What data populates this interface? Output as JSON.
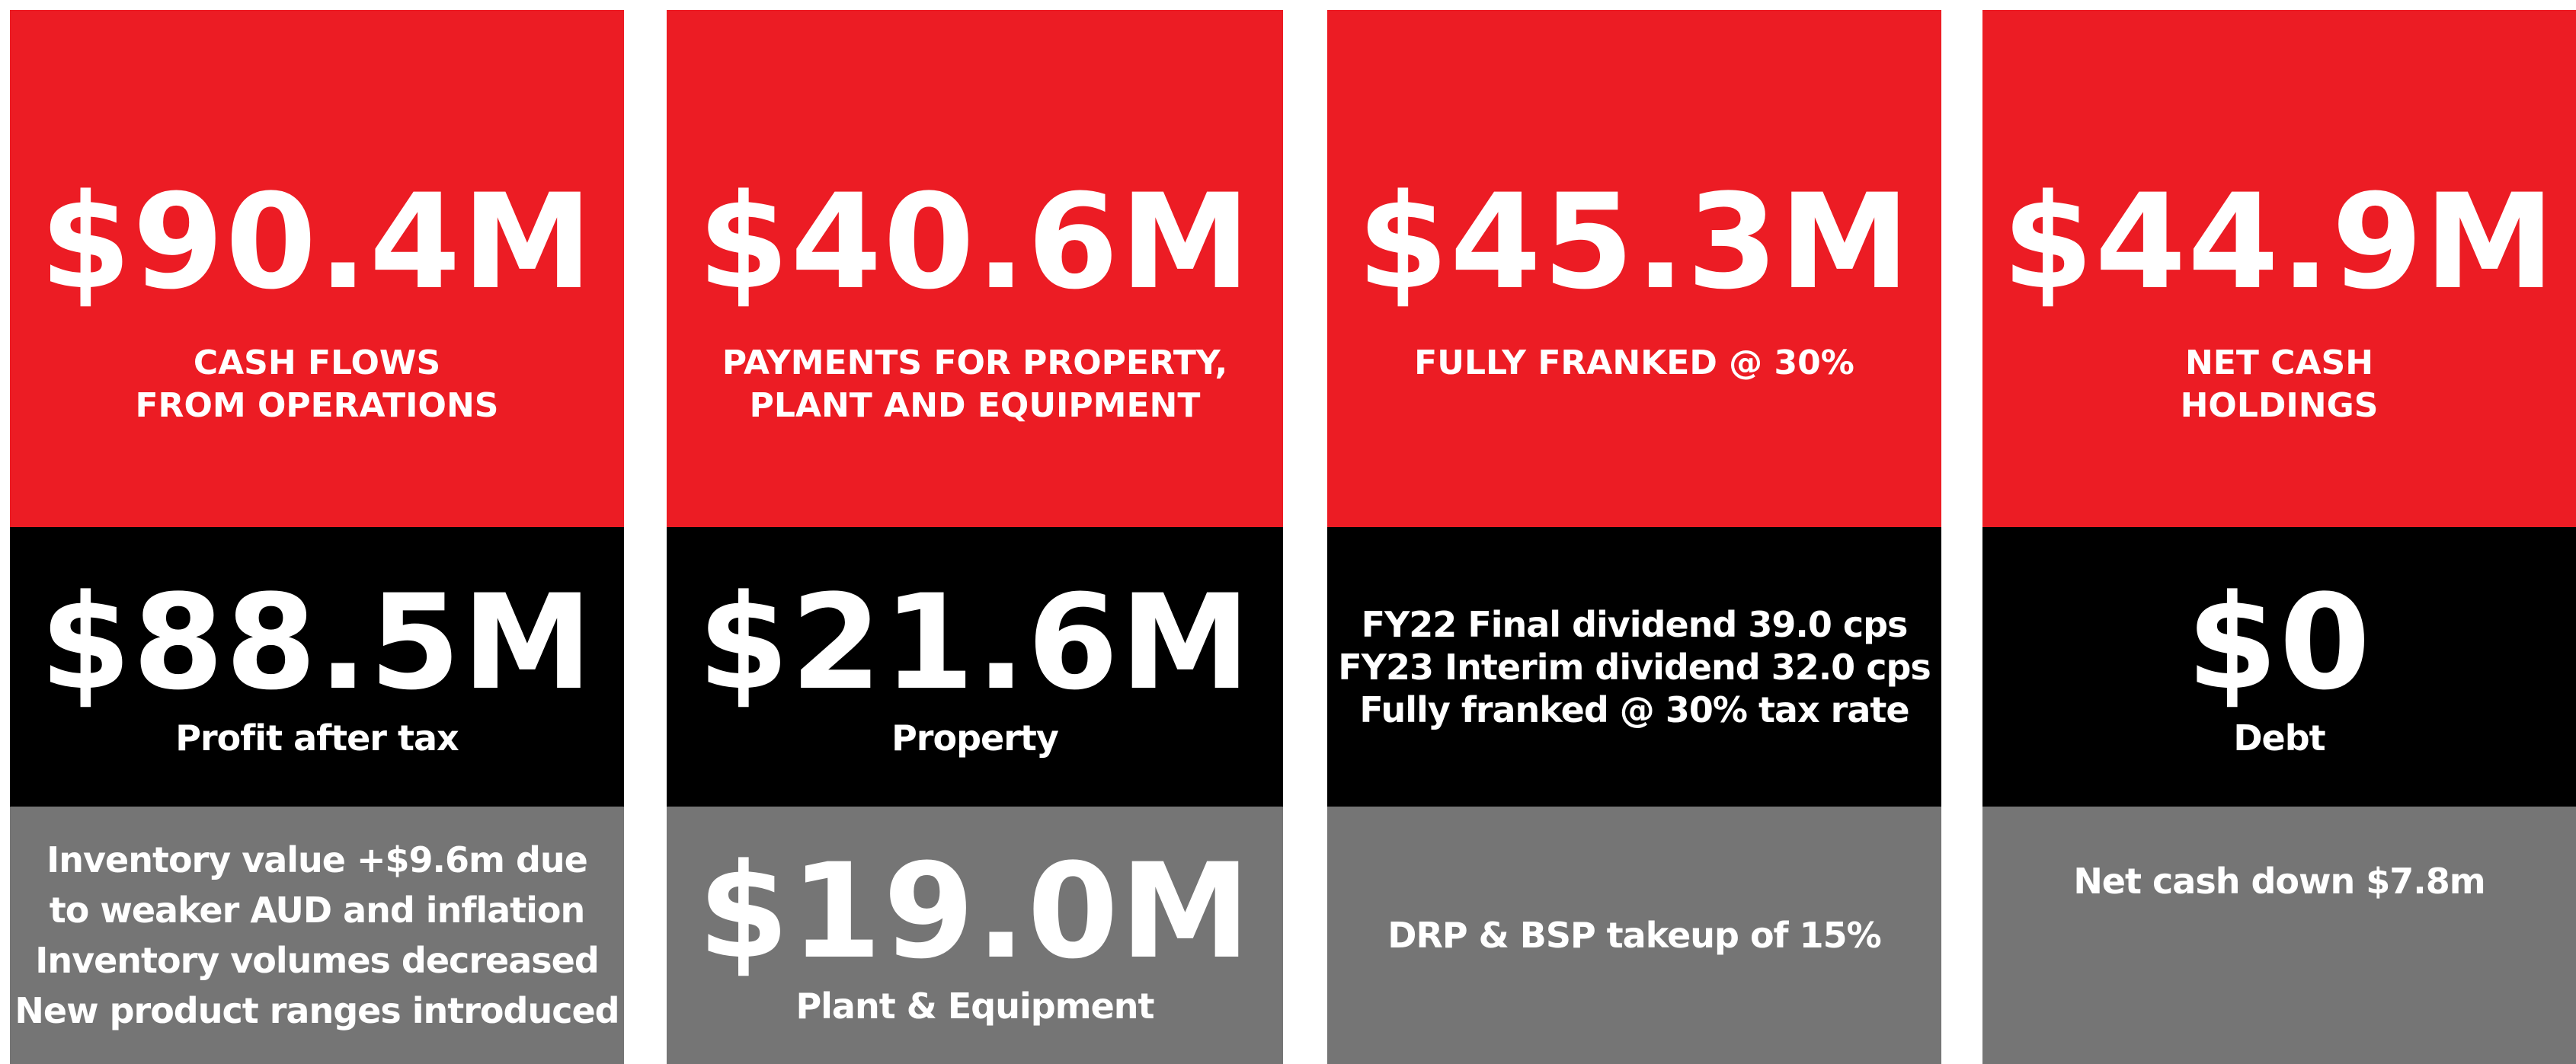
{
  "cards": [
    {
      "top": {
        "value": "$90.4M",
        "lines": [
          "CASH FLOWS",
          "FROM OPERATIONS"
        ]
      },
      "middle": {
        "value": "$88.5M",
        "lines": [
          "Profit after tax"
        ]
      },
      "bottom": {
        "lines": [
          "Inventory value +$9.6m due",
          "to weaker AUD and inflation",
          "Inventory volumes decreased",
          "New product ranges introduced"
        ]
      }
    },
    {
      "top": {
        "value": "$40.6M",
        "lines": [
          "PAYMENTS FOR PROPERTY,",
          "PLANT AND EQUIPMENT"
        ]
      },
      "middle": {
        "value": "$21.6M",
        "lines": [
          "Property"
        ]
      },
      "bottom": {
        "value": "$19.0M",
        "lines": [
          "Plant & Equipment"
        ]
      }
    },
    {
      "top": {
        "value": "$45.3M",
        "lines": [
          "FULLY FRANKED @ 30%"
        ]
      },
      "middle": {
        "lines": [
          "FY22 Final dividend 39.0 cps",
          "FY23 Interim dividend 32.0 cps",
          "Fully franked @ 30% tax rate"
        ]
      },
      "bottom": {
        "lines": [
          "DRP & BSP takeup of 15%"
        ]
      }
    },
    {
      "top": {
        "value": "$44.9M",
        "lines": [
          "NET CASH",
          "HOLDINGS"
        ]
      },
      "middle": {
        "value": "$0",
        "lines": [
          "Debt"
        ]
      },
      "bottom": {
        "lines": [
          "Net cash down $7.8m"
        ]
      }
    }
  ]
}
